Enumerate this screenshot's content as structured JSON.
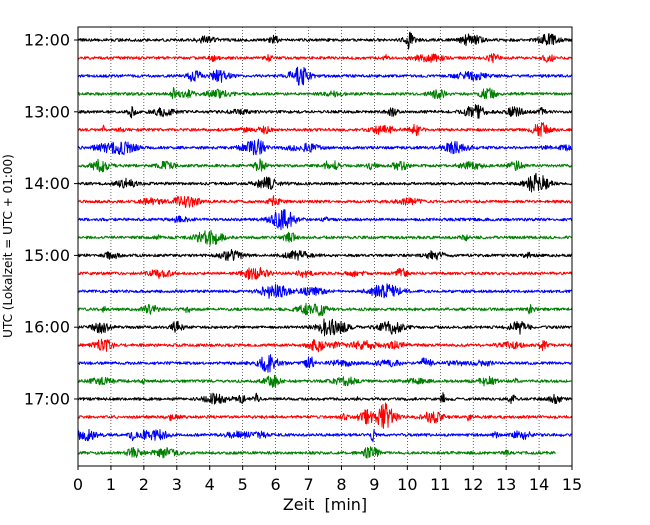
{
  "chart_data": {
    "type": "line",
    "title": "",
    "xlabel": "Zeit  [min]",
    "ylabel": "UTC (Lokalzeit = UTC + 01:00)",
    "xlim": [
      0,
      15
    ],
    "xticks": [
      0,
      1,
      2,
      3,
      4,
      5,
      6,
      7,
      8,
      9,
      10,
      11,
      12,
      13,
      14,
      15
    ],
    "ytick_labels": [
      "12:00",
      "13:00",
      "14:00",
      "15:00",
      "16:00",
      "17:00"
    ],
    "grid": "vertical dotted at each minute",
    "trace_colors": [
      "#000000",
      "#ff0000",
      "#0000ff",
      "#008000"
    ],
    "series": [
      {
        "start": "12:00",
        "x": [
          0,
          15
        ],
        "color": "#000000"
      },
      {
        "start": "12:15",
        "x": [
          0,
          15
        ],
        "color": "#ff0000"
      },
      {
        "start": "12:30",
        "x": [
          0,
          15
        ],
        "color": "#0000ff"
      },
      {
        "start": "12:45",
        "x": [
          0,
          15
        ],
        "color": "#008000"
      },
      {
        "start": "13:00",
        "x": [
          0,
          15
        ],
        "color": "#000000"
      },
      {
        "start": "13:15",
        "x": [
          0,
          15
        ],
        "color": "#ff0000"
      },
      {
        "start": "13:30",
        "x": [
          0,
          15
        ],
        "color": "#0000ff"
      },
      {
        "start": "13:45",
        "x": [
          0,
          15
        ],
        "color": "#008000"
      },
      {
        "start": "14:00",
        "x": [
          0,
          15
        ],
        "color": "#000000"
      },
      {
        "start": "14:15",
        "x": [
          0,
          15
        ],
        "color": "#ff0000"
      },
      {
        "start": "14:30",
        "x": [
          0,
          15
        ],
        "color": "#0000ff"
      },
      {
        "start": "14:45",
        "x": [
          0,
          15
        ],
        "color": "#008000"
      },
      {
        "start": "15:00",
        "x": [
          0,
          15
        ],
        "color": "#000000"
      },
      {
        "start": "15:15",
        "x": [
          0,
          15
        ],
        "color": "#ff0000"
      },
      {
        "start": "15:30",
        "x": [
          0,
          15
        ],
        "color": "#0000ff"
      },
      {
        "start": "15:45",
        "x": [
          0,
          15
        ],
        "color": "#008000"
      },
      {
        "start": "16:00",
        "x": [
          0,
          15
        ],
        "color": "#000000"
      },
      {
        "start": "16:15",
        "x": [
          0,
          15
        ],
        "color": "#ff0000"
      },
      {
        "start": "16:30",
        "x": [
          0,
          15
        ],
        "color": "#0000ff"
      },
      {
        "start": "16:45",
        "x": [
          0,
          15
        ],
        "color": "#008000"
      },
      {
        "start": "17:00",
        "x": [
          0,
          15
        ],
        "color": "#000000"
      },
      {
        "start": "17:15",
        "x": [
          0,
          15
        ],
        "color": "#ff0000"
      },
      {
        "start": "17:30",
        "x": [
          0,
          15
        ],
        "color": "#0000ff"
      },
      {
        "start": "17:45",
        "x": [
          0,
          14.5
        ],
        "color": "#008000"
      }
    ]
  }
}
